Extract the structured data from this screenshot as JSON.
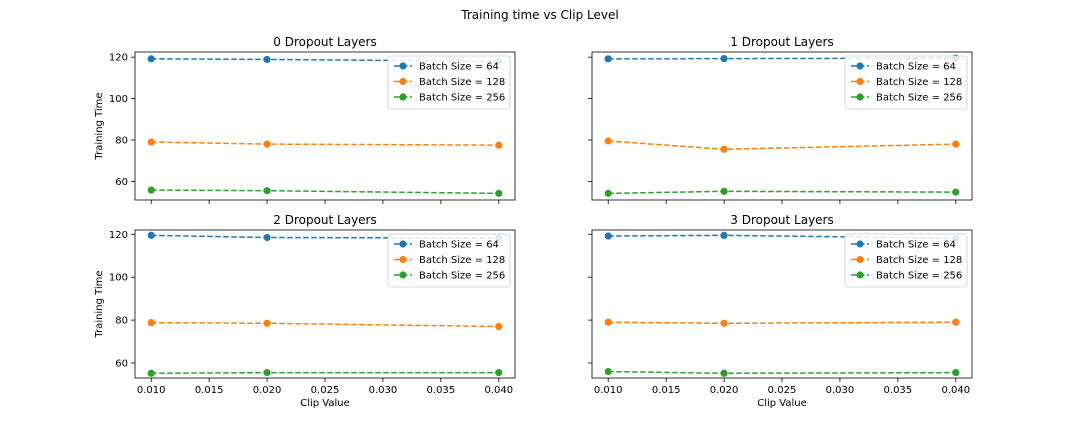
{
  "figure": {
    "title": "Training time vs Clip Level",
    "colors": {
      "Batch Size = 64": "#1f77b4",
      "Batch Size = 128": "#ff7f0e",
      "Batch Size = 256": "#2ca02c"
    }
  },
  "chart_data": [
    {
      "type": "line",
      "title": "0 Dropout Layers",
      "xlabel": "",
      "ylabel": "Training Time",
      "x": [
        0.01,
        0.02,
        0.04
      ],
      "xlim": [
        0.0086,
        0.0414
      ],
      "ylim": [
        51,
        122.5
      ],
      "xticks": [
        "0.010",
        "0.015",
        "0.020",
        "0.025",
        "0.030",
        "0.035",
        "0.040"
      ],
      "yticks": [
        "60",
        "80",
        "100",
        "120"
      ],
      "show_xtick_labels": false,
      "show_ytick_labels": true,
      "grid": false,
      "legend": "top-right",
      "series": [
        {
          "name": "Batch Size = 64",
          "values": [
            119.2,
            118.9,
            118.0
          ]
        },
        {
          "name": "Batch Size = 128",
          "values": [
            79.0,
            78.0,
            77.5
          ]
        },
        {
          "name": "Batch Size = 256",
          "values": [
            55.8,
            55.5,
            54.2
          ]
        }
      ]
    },
    {
      "type": "line",
      "title": "1 Dropout Layers",
      "xlabel": "",
      "ylabel": "",
      "x": [
        0.01,
        0.02,
        0.04
      ],
      "xlim": [
        0.0086,
        0.0414
      ],
      "ylim": [
        51,
        122.5
      ],
      "xticks": [
        "0.010",
        "0.015",
        "0.020",
        "0.025",
        "0.030",
        "0.035",
        "0.040"
      ],
      "yticks": [
        "60",
        "80",
        "100",
        "120"
      ],
      "show_xtick_labels": false,
      "show_ytick_labels": false,
      "grid": false,
      "legend": "top-right",
      "series": [
        {
          "name": "Batch Size = 64",
          "values": [
            119.2,
            119.3,
            119.5
          ]
        },
        {
          "name": "Batch Size = 128",
          "values": [
            79.5,
            75.5,
            78.0
          ]
        },
        {
          "name": "Batch Size = 256",
          "values": [
            54.2,
            55.2,
            54.8
          ]
        }
      ]
    },
    {
      "type": "line",
      "title": "2 Dropout Layers",
      "xlabel": "Clip Value",
      "ylabel": "Training Time",
      "x": [
        0.01,
        0.02,
        0.04
      ],
      "xlim": [
        0.0086,
        0.0414
      ],
      "ylim": [
        53,
        122
      ],
      "xticks": [
        "0.010",
        "0.015",
        "0.020",
        "0.025",
        "0.030",
        "0.035",
        "0.040"
      ],
      "yticks": [
        "60",
        "80",
        "100",
        "120"
      ],
      "show_xtick_labels": true,
      "show_ytick_labels": true,
      "grid": false,
      "legend": "top-right",
      "series": [
        {
          "name": "Batch Size = 64",
          "values": [
            119.5,
            118.5,
            118.2
          ]
        },
        {
          "name": "Batch Size = 128",
          "values": [
            78.8,
            78.5,
            77.0
          ]
        },
        {
          "name": "Batch Size = 256",
          "values": [
            55.2,
            55.5,
            55.5
          ]
        }
      ]
    },
    {
      "type": "line",
      "title": "3 Dropout Layers",
      "xlabel": "Clip Value",
      "ylabel": "",
      "x": [
        0.01,
        0.02,
        0.04
      ],
      "xlim": [
        0.0086,
        0.0414
      ],
      "ylim": [
        53,
        122
      ],
      "xticks": [
        "0.010",
        "0.015",
        "0.020",
        "0.025",
        "0.030",
        "0.035",
        "0.040"
      ],
      "yticks": [
        "60",
        "80",
        "100",
        "120"
      ],
      "show_xtick_labels": true,
      "show_ytick_labels": false,
      "grid": false,
      "legend": "top-right",
      "series": [
        {
          "name": "Batch Size = 64",
          "values": [
            119.2,
            119.5,
            118.2
          ]
        },
        {
          "name": "Batch Size = 128",
          "values": [
            79.0,
            78.5,
            79.0
          ]
        },
        {
          "name": "Batch Size = 256",
          "values": [
            56.0,
            55.2,
            55.5
          ]
        }
      ]
    }
  ]
}
